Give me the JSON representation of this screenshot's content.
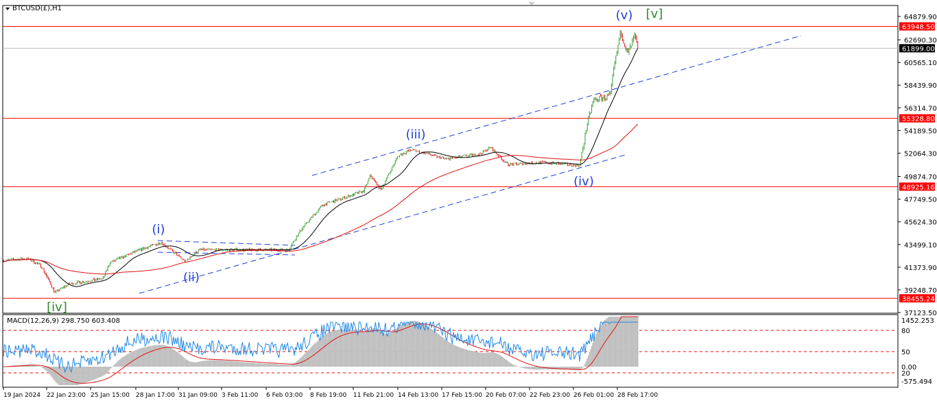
{
  "header": {
    "symbol_label": "BTCUSD(£),H1"
  },
  "indicator": {
    "label": "MACD(12,26,9) 298.750 603.408"
  },
  "colors": {
    "up": "#2e9e2e",
    "down": "#e01010",
    "level": "#ff0000",
    "channel": "#1f3fdd",
    "ma_fast": "#000000",
    "ma_slow": "#e01010",
    "macd_line": "#1e88e5",
    "histogram": "#c0c0c0",
    "wave_minor": "#1f3fdd",
    "wave_major": "#2e8b2e"
  },
  "chart_data": {
    "type": "candlestick",
    "price_ticks": [
      "64879.90",
      "62690.30",
      "60565.10",
      "58439.90",
      "56314.70",
      "54189.50",
      "52064.30",
      "49874.70",
      "47749.50",
      "45624.30",
      "43499.10",
      "41373.90",
      "39248.70",
      "37123.50"
    ],
    "price_range": [
      37123.5,
      64879.9
    ],
    "date_ticks": [
      "19 Jan 2024",
      "22 Jan 23:00",
      "25 Jan 15:00",
      "28 Jan 17:00",
      "31 Jan 09:00",
      "3 Feb 11:00",
      "6 Feb 03:00",
      "8 Feb 19:00",
      "11 Feb 21:00",
      "14 Feb 13:00",
      "17 Feb 15:00",
      "20 Feb 07:00",
      "22 Feb 23:00",
      "26 Feb 01:00",
      "28 Feb 17:00"
    ],
    "levels": [
      {
        "value": "63948.50",
        "color": "#ff0000"
      },
      {
        "value": "55328.80",
        "color": "#ff0000"
      },
      {
        "value": "48925.16",
        "color": "#ff0000"
      },
      {
        "value": "38455.24",
        "color": "#ff0000"
      }
    ],
    "current_price": "61899.00",
    "price_path": [
      [
        "19 Jan 2024",
        42000
      ],
      [
        "20 Jan",
        42200
      ],
      [
        "21 Jan",
        41500
      ],
      [
        "22 Jan",
        39000
      ],
      [
        "23 Jan",
        39800
      ],
      [
        "25 Jan",
        40300
      ],
      [
        "26 Jan",
        41800
      ],
      [
        "28 Jan",
        42900
      ],
      [
        "29 Jan",
        43700
      ],
      [
        "30 Jan",
        41900
      ],
      [
        "31 Jan",
        43000
      ],
      [
        "6 Feb",
        43000
      ],
      [
        "7 Feb",
        45000
      ],
      [
        "8 Feb",
        47200
      ],
      [
        "11 Feb",
        48500
      ],
      [
        "12 Feb",
        50000
      ],
      [
        "12 Feb 12:00",
        48600
      ],
      [
        "13 Feb",
        51800
      ],
      [
        "14 Feb",
        52400
      ],
      [
        "16 Feb",
        51500
      ],
      [
        "19 Feb",
        52000
      ],
      [
        "19 Feb 12:00",
        52600
      ],
      [
        "20 Feb",
        51000
      ],
      [
        "23 Feb",
        51200
      ],
      [
        "26 Feb",
        50900
      ],
      [
        "26 Feb 12:00",
        54500
      ],
      [
        "27 Feb",
        57000
      ],
      [
        "27 Feb 18:00",
        57500
      ],
      [
        "28 Feb",
        60000
      ],
      [
        "28 Feb 06:00",
        63500
      ],
      [
        "28 Feb 12:00",
        61300
      ],
      [
        "28 Feb 18:00",
        63000
      ],
      [
        "29 Feb",
        61899
      ]
    ],
    "wave_labels": [
      {
        "text": "(i)",
        "kind": "minor",
        "price": 44300
      },
      {
        "text": "(ii)",
        "kind": "minor",
        "price": 41200
      },
      {
        "text": "(iii)",
        "kind": "minor",
        "price": 53200
      },
      {
        "text": "(iv)",
        "kind": "minor",
        "price": 50200
      },
      {
        "text": "(v)",
        "kind": "minor",
        "price": 64000
      },
      {
        "text": "[iv]",
        "kind": "major",
        "price": 38400
      },
      {
        "text": "[v]",
        "kind": "major",
        "price": 64000
      }
    ],
    "macd_ticks": [
      "1452.253",
      "80",
      "50",
      "0.00",
      "20",
      "-575.494"
    ],
    "grid": false
  }
}
